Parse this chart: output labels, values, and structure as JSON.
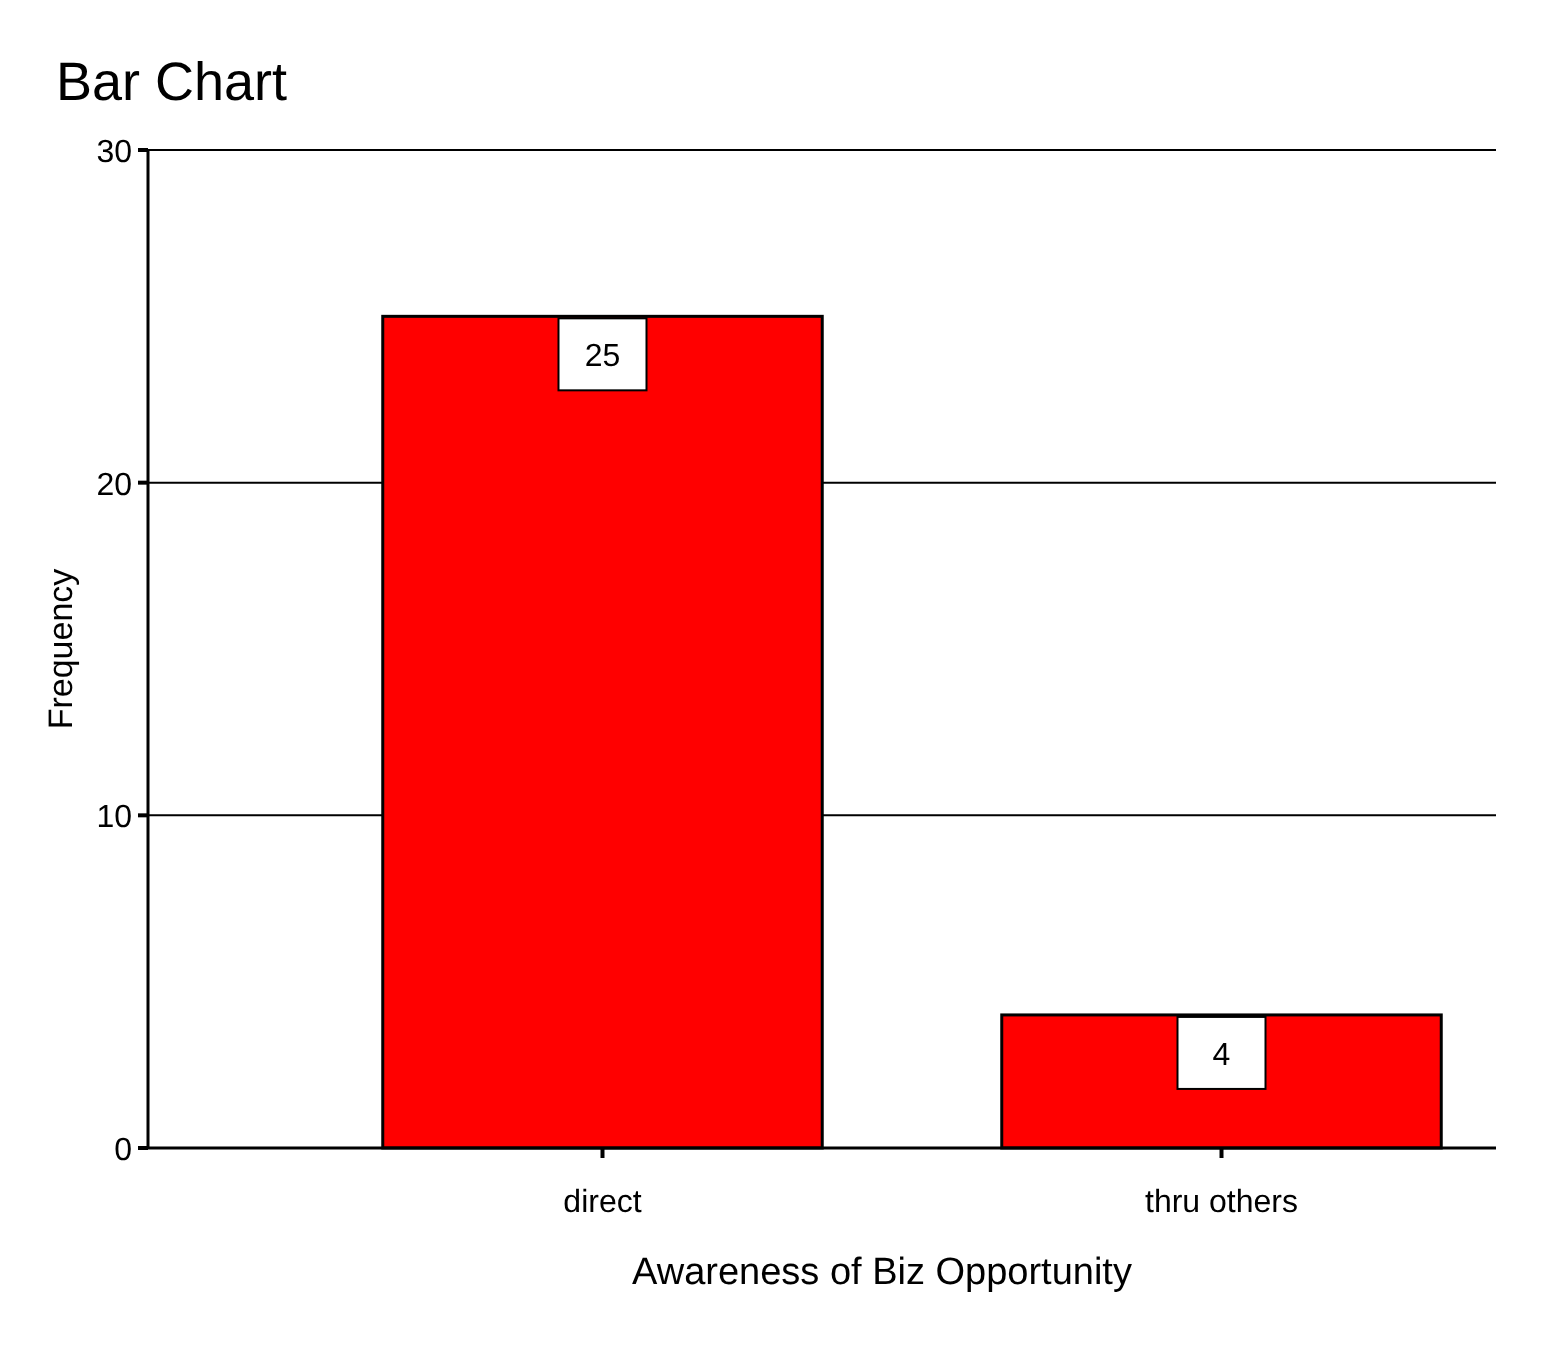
{
  "chart_data": {
    "type": "bar",
    "title": "Bar Chart",
    "xlabel": "Awareness of Biz Opportunity",
    "ylabel": "Frequency",
    "categories": [
      "direct",
      "thru others"
    ],
    "values": [
      25,
      4
    ],
    "color": "#ff0000",
    "ylim": [
      0,
      30
    ],
    "yticks": [
      0,
      10,
      20,
      30
    ],
    "grid": "y",
    "data_labels": true
  }
}
